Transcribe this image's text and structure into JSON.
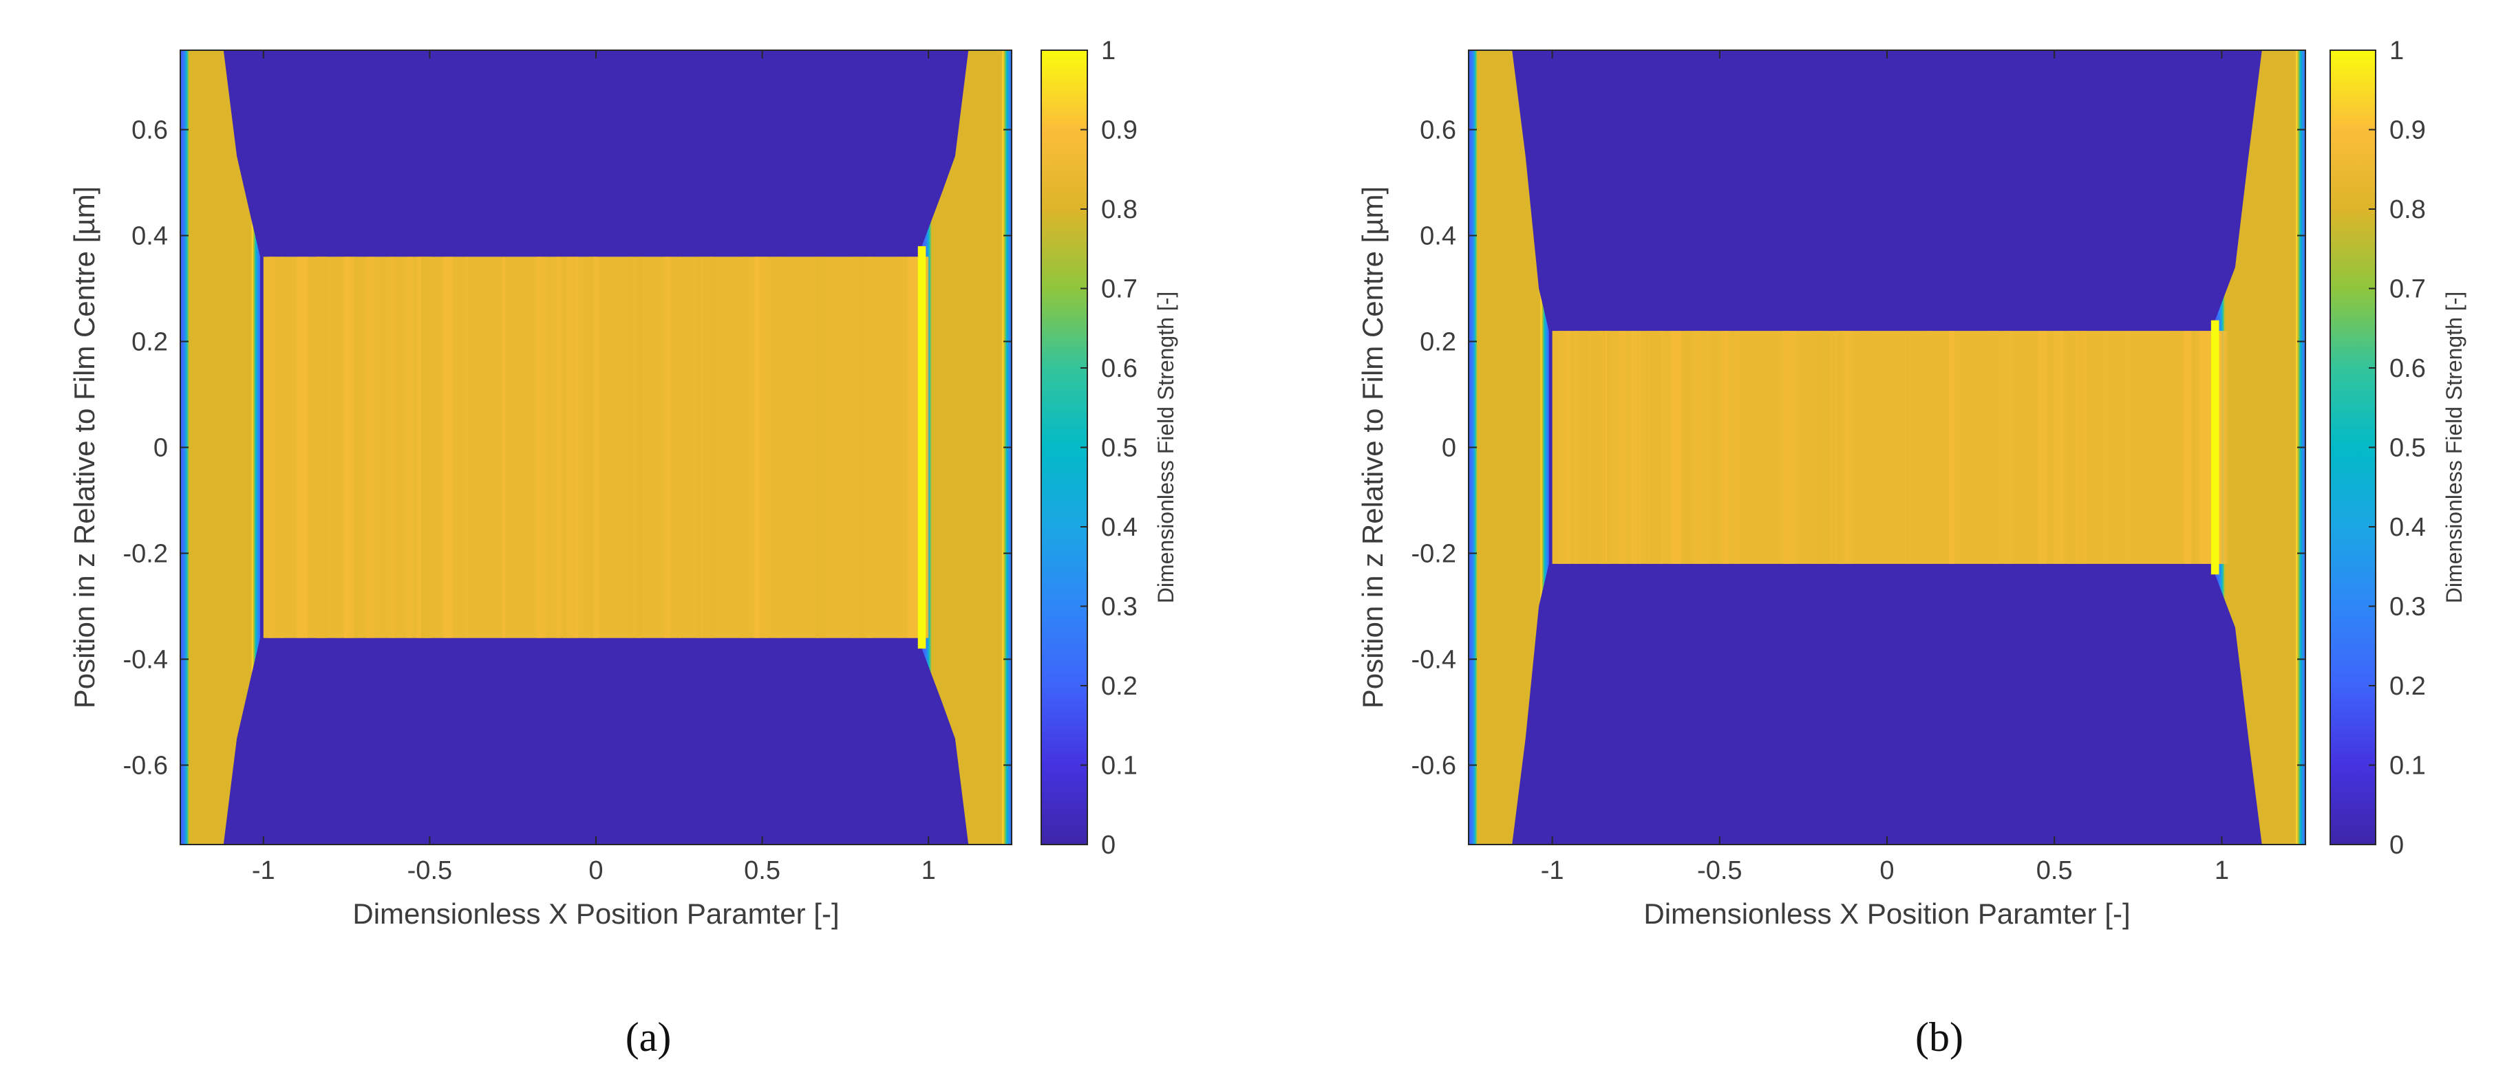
{
  "figure": {
    "panel_labels": [
      "(a)",
      "(b)"
    ]
  },
  "chart_data": [
    {
      "type": "heatmap",
      "panel": "(a)",
      "xlabel": "Dimensionless X Position Paramter [-]",
      "ylabel": "Position in z Relative to Film Centre [µm]",
      "xlim": [
        -1.25,
        1.25
      ],
      "ylim": [
        -0.75,
        0.75
      ],
      "xticks": [
        -1,
        -0.5,
        0,
        0.5,
        1
      ],
      "xtick_labels": [
        "-1",
        "-0.5",
        "0",
        "0.5",
        "1"
      ],
      "yticks": [
        -0.6,
        -0.4,
        -0.2,
        0,
        0.2,
        0.4,
        0.6
      ],
      "ytick_labels": [
        "-0.6",
        "-0.4",
        "-0.2",
        "0",
        "0.2",
        "0.4",
        "0.6"
      ],
      "film_half_thickness": 0.36,
      "film_x_range": [
        -1.0,
        1.0
      ],
      "film_field_strength": 0.85,
      "edge_peak_x": 0.98,
      "background_field_strength": 0.02,
      "colorbar": {
        "label": "Dimensionless Field Strength [-]",
        "ticks": [
          0,
          0.1,
          0.2,
          0.3,
          0.4,
          0.5,
          0.6,
          0.7,
          0.8,
          0.9,
          1
        ],
        "tick_labels": [
          "0",
          "0.1",
          "0.2",
          "0.3",
          "0.4",
          "0.5",
          "0.6",
          "0.7",
          "0.8",
          "0.9",
          "1"
        ],
        "range": [
          0,
          1
        ]
      },
      "colormap_stops": [
        {
          "value": 0.0,
          "color": "#3e26a8"
        },
        {
          "value": 0.1,
          "color": "#4433e0"
        },
        {
          "value": 0.2,
          "color": "#3e64fa"
        },
        {
          "value": 0.3,
          "color": "#2e87f7"
        },
        {
          "value": 0.4,
          "color": "#1ba6e4"
        },
        {
          "value": 0.5,
          "color": "#03bac7"
        },
        {
          "value": 0.6,
          "color": "#34c49b"
        },
        {
          "value": 0.7,
          "color": "#8fc63d"
        },
        {
          "value": 0.8,
          "color": "#ddb52a"
        },
        {
          "value": 0.9,
          "color": "#fbbd3a"
        },
        {
          "value": 1.0,
          "color": "#f9fb0e"
        }
      ]
    },
    {
      "type": "heatmap",
      "panel": "(b)",
      "xlabel": "Dimensionless X Position Paramter [-]",
      "ylabel": "Position in z Relative to Film Centre [µm]",
      "xlim": [
        -1.25,
        1.25
      ],
      "ylim": [
        -0.75,
        0.75
      ],
      "xticks": [
        -1,
        -0.5,
        0,
        0.5,
        1
      ],
      "xtick_labels": [
        "-1",
        "-0.5",
        "0",
        "0.5",
        "1"
      ],
      "yticks": [
        -0.6,
        -0.4,
        -0.2,
        0,
        0.2,
        0.4,
        0.6
      ],
      "ytick_labels": [
        "-0.6",
        "-0.4",
        "-0.2",
        "0",
        "0.2",
        "0.4",
        "0.6"
      ],
      "film_half_thickness": 0.22,
      "film_x_range": [
        -1.0,
        1.0
      ],
      "film_field_strength": 0.85,
      "edge_peak_x": 0.98,
      "background_field_strength": 0.02,
      "colorbar": {
        "label": "Dimensionless Field Strength [-]",
        "ticks": [
          0,
          0.1,
          0.2,
          0.3,
          0.4,
          0.5,
          0.6,
          0.7,
          0.8,
          0.9,
          1
        ],
        "tick_labels": [
          "0",
          "0.1",
          "0.2",
          "0.3",
          "0.4",
          "0.5",
          "0.6",
          "0.7",
          "0.8",
          "0.9",
          "1"
        ],
        "range": [
          0,
          1
        ]
      },
      "colormap_stops": [
        {
          "value": 0.0,
          "color": "#3e26a8"
        },
        {
          "value": 0.1,
          "color": "#4433e0"
        },
        {
          "value": 0.2,
          "color": "#3e64fa"
        },
        {
          "value": 0.3,
          "color": "#2e87f7"
        },
        {
          "value": 0.4,
          "color": "#1ba6e4"
        },
        {
          "value": 0.5,
          "color": "#03bac7"
        },
        {
          "value": 0.6,
          "color": "#34c49b"
        },
        {
          "value": 0.7,
          "color": "#8fc63d"
        },
        {
          "value": 0.8,
          "color": "#ddb52a"
        },
        {
          "value": 0.9,
          "color": "#fbbd3a"
        },
        {
          "value": 1.0,
          "color": "#f9fb0e"
        }
      ]
    }
  ]
}
